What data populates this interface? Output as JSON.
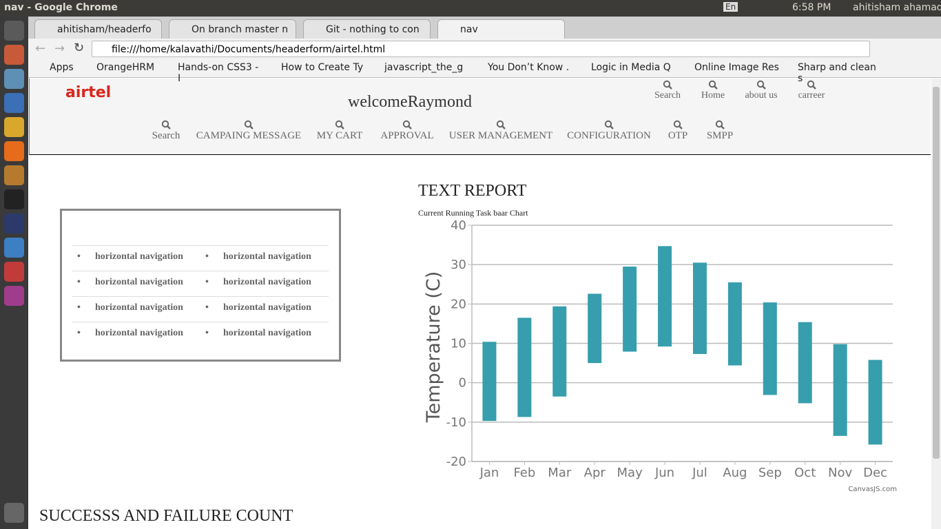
{
  "window": {
    "title": "nav - Google Chrome",
    "keyboard": "En",
    "time": "6:58 PM",
    "user": "ahitisham ahamad"
  },
  "tabs": [
    "ahitisham/headerfo",
    "On branch master n",
    "Git - nothing to con",
    "nav"
  ],
  "address": "file:///home/kalavathi/Documents/headerform/airtel.html",
  "bookmarks": [
    "Apps",
    "OrangeHRM",
    "Hands-on CSS3 - I",
    "How to Create Ty",
    "javascript_the_g",
    "You Don’t Know .",
    "Logic in Media Q",
    "Online Image Res",
    "Sharp and clean s"
  ],
  "header": {
    "logo": "airtel",
    "welcome": "welcomeRaymond",
    "top_nav": [
      "Search",
      "Home",
      "about us",
      "carreer"
    ],
    "main_nav": [
      "Search",
      "CAMPAING MESSAGE",
      "MY CART",
      "APPROVAL",
      "USER MANAGEMENT",
      "CONFIGURATION",
      "OTP",
      "SMPP"
    ]
  },
  "side_list": [
    "horizontal navigation",
    "horizontal navigation",
    "horizontal navigation",
    "horizontal navigation",
    "horizontal navigation",
    "horizontal navigation",
    "horizontal navigation",
    "horizontal navigation"
  ],
  "report": {
    "title": "TEXT REPORT"
  },
  "chart_data": {
    "type": "rangecolumn",
    "title": "Current Running Task baar Chart",
    "y_label": "Temperature (C)",
    "credit": "CanvasJS.com",
    "categories": [
      "Jan",
      "Feb",
      "Mar",
      "Apr",
      "May",
      "Jun",
      "Jul",
      "Aug",
      "Sep",
      "Oct",
      "Nov",
      "Dec"
    ],
    "low": [
      -9.7,
      -8.7,
      -3.5,
      5,
      7.9,
      9.2,
      7.3,
      4.4,
      -3.1,
      -5.2,
      -13.5,
      -15.7
    ],
    "high": [
      10.4,
      16.5,
      19.4,
      22.6,
      29.5,
      34.7,
      30.5,
      25.5,
      20.4,
      15.4,
      9.8,
      5.8
    ],
    "color": "#369ead",
    "ylim": [
      -20,
      40
    ],
    "yticks": [
      -20,
      -10,
      0,
      10,
      20,
      30,
      40
    ],
    "grid": true
  },
  "footer_heading": "SUCCESSS AND FAILURE COUNT"
}
